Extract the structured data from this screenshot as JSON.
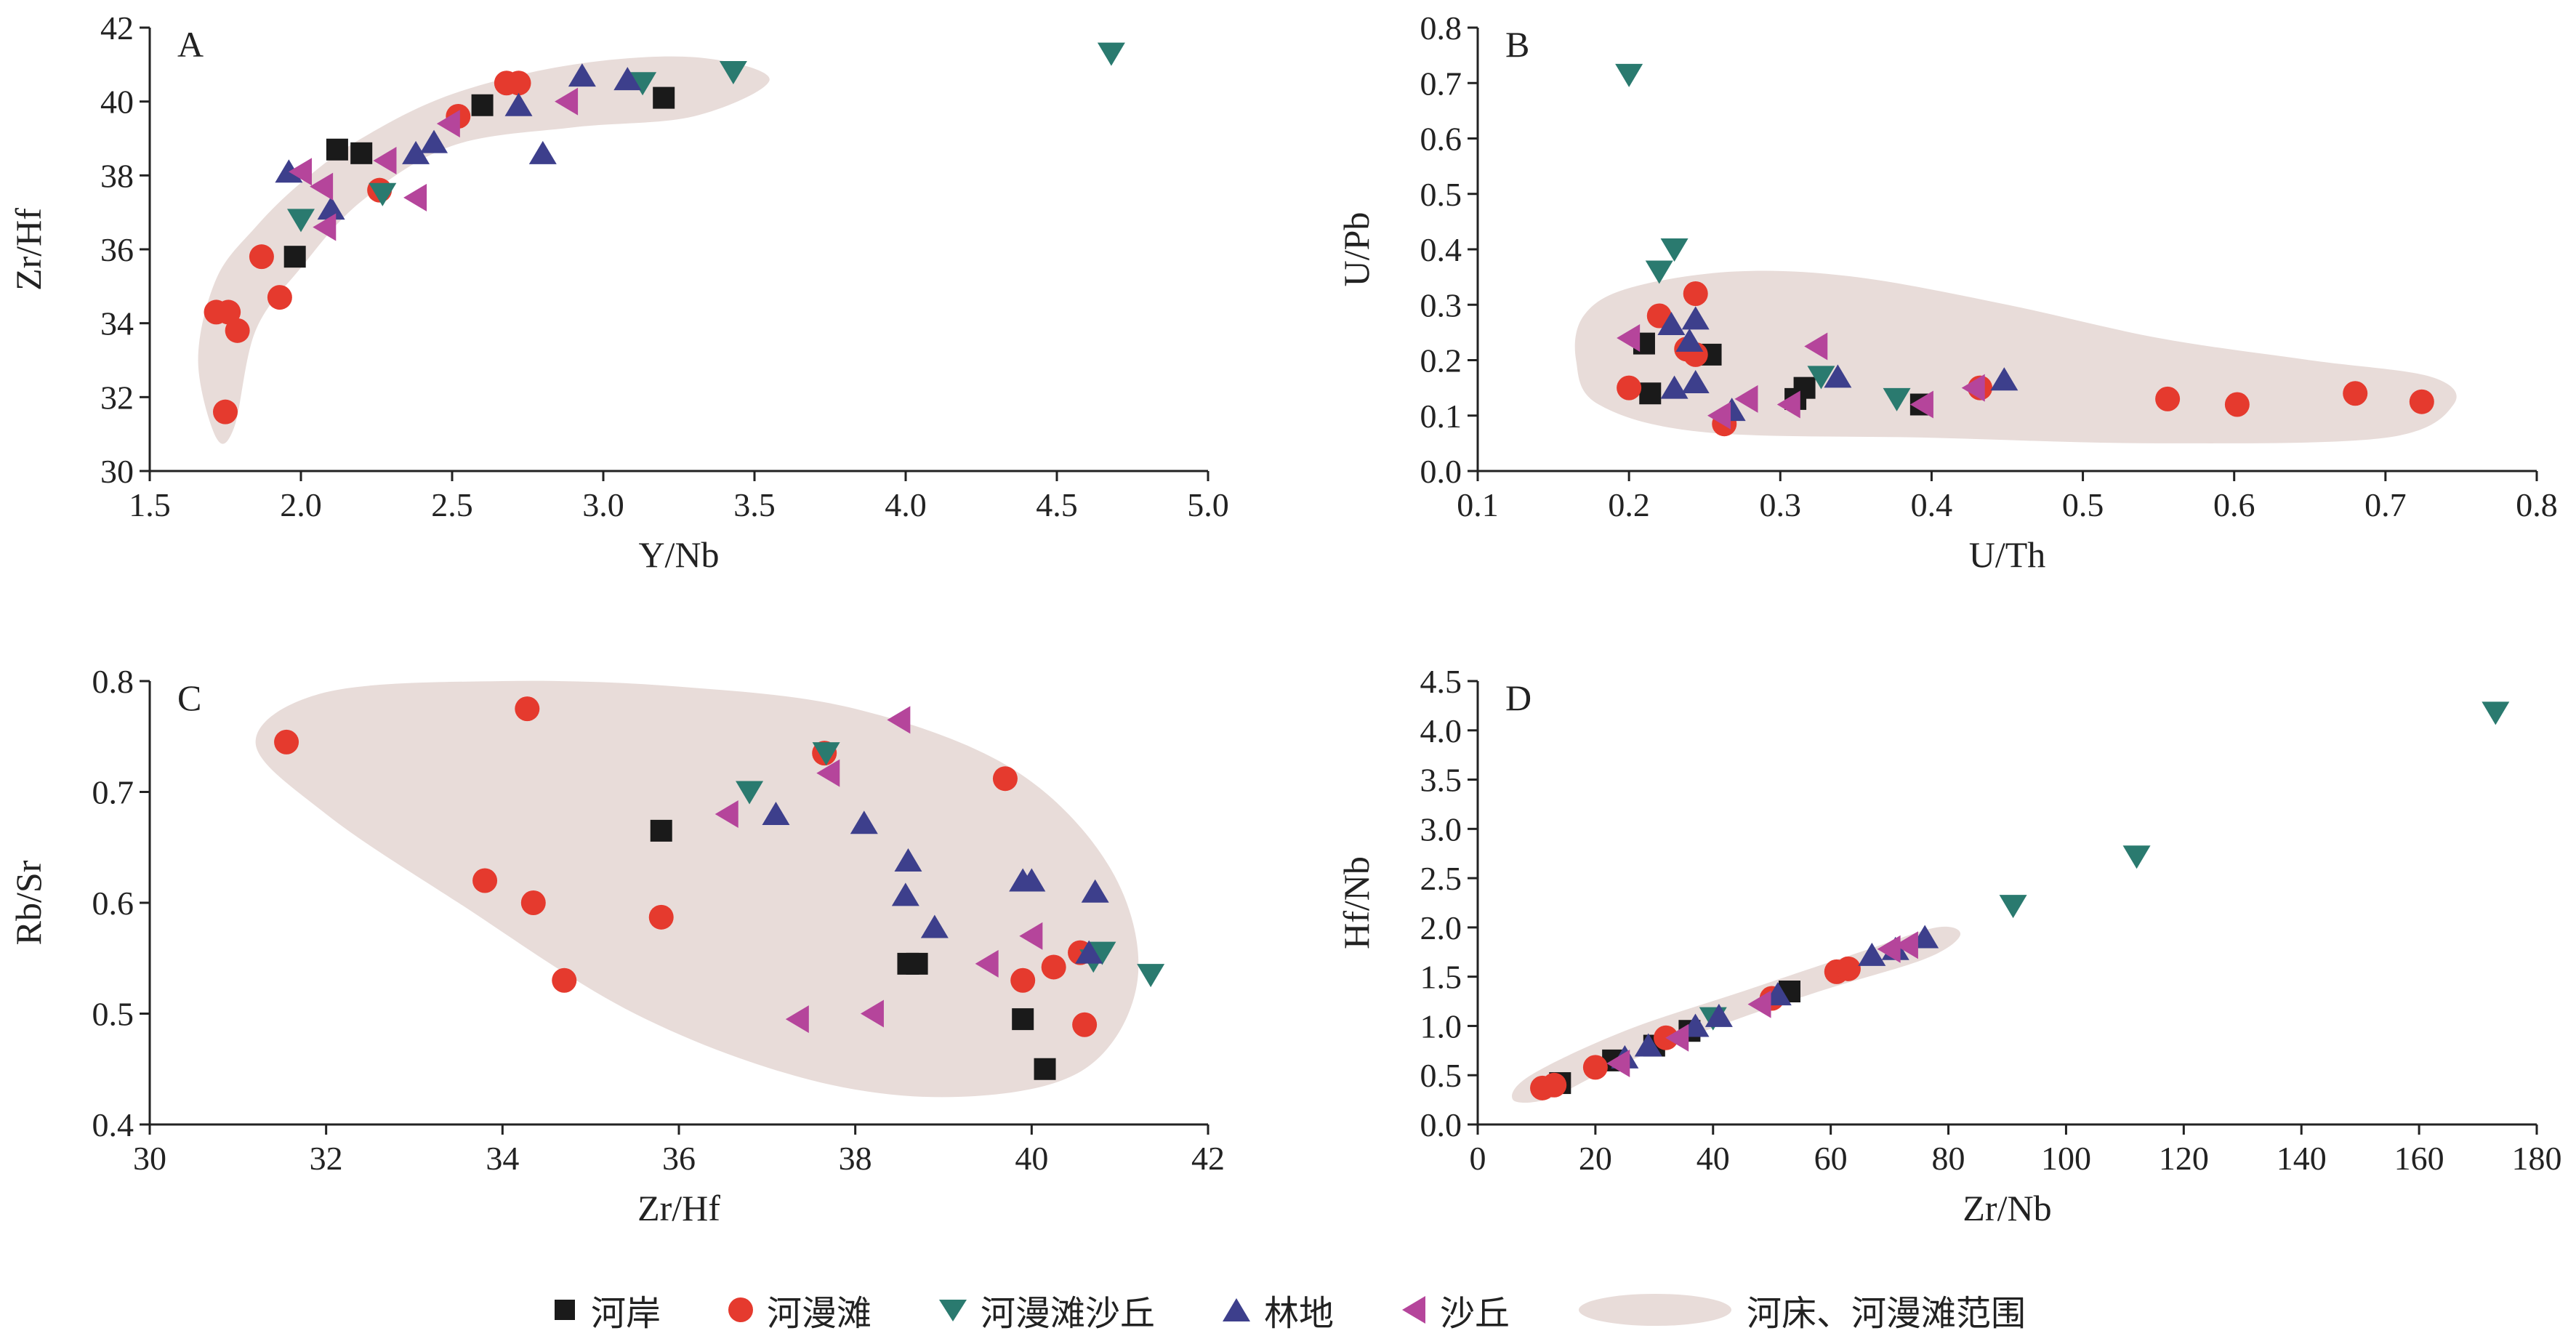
{
  "series_styles": [
    {
      "key": "riverbank",
      "name": "河岸",
      "shape": "square",
      "color": "#1a1a1a"
    },
    {
      "key": "floodplain",
      "name": "河漫滩",
      "shape": "circle",
      "color": "#e53a2e"
    },
    {
      "key": "floodplain_dune",
      "name": "河漫滩沙丘",
      "shape": "triangle-down",
      "color": "#2a7a6f"
    },
    {
      "key": "woodland",
      "name": "林地",
      "shape": "triangle-up",
      "color": "#3d3f8c"
    },
    {
      "key": "dune",
      "name": "沙丘",
      "shape": "triangle-left",
      "color": "#b5459b"
    }
  ],
  "region": {
    "name": "河床、河漫滩范围",
    "color": "#e8dcd9"
  },
  "chart_data": [
    {
      "panel": "A",
      "type": "scatter",
      "xlabel": "Y/Nb",
      "ylabel": "Zr/Hf",
      "xlim": [
        1.5,
        5.0
      ],
      "ylim": [
        30,
        42
      ],
      "xticks": [
        "1.5",
        "2.0",
        "2.5",
        "3.0",
        "3.5",
        "4.0",
        "4.5",
        "5.0"
      ],
      "yticks": [
        "30",
        "32",
        "34",
        "36",
        "38",
        "40",
        "42"
      ],
      "region_path": [
        [
          1.72,
          30.9
        ],
        [
          1.66,
          33
        ],
        [
          1.72,
          35.2
        ],
        [
          1.85,
          36.6
        ],
        [
          2.0,
          37.8
        ],
        [
          2.2,
          39.0
        ],
        [
          2.5,
          40.2
        ],
        [
          2.9,
          41.0
        ],
        [
          3.3,
          41.2
        ],
        [
          3.55,
          40.6
        ],
        [
          3.3,
          39.6
        ],
        [
          2.9,
          39.3
        ],
        [
          2.5,
          38.8
        ],
        [
          2.2,
          37.3
        ],
        [
          2.0,
          35.5
        ],
        [
          1.85,
          33.8
        ],
        [
          1.78,
          31.2
        ]
      ],
      "series": [
        {
          "key": "riverbank",
          "points": [
            [
              2.12,
              38.7
            ],
            [
              2.2,
              38.6
            ],
            [
              2.6,
              39.9
            ],
            [
              3.2,
              40.1
            ],
            [
              1.98,
              35.8
            ]
          ]
        },
        {
          "key": "floodplain",
          "points": [
            [
              1.72,
              34.3
            ],
            [
              1.76,
              34.3
            ],
            [
              1.79,
              33.8
            ],
            [
              1.75,
              31.6
            ],
            [
              1.87,
              35.8
            ],
            [
              1.93,
              34.7
            ],
            [
              2.26,
              37.6
            ],
            [
              2.52,
              39.6
            ],
            [
              2.68,
              40.5
            ],
            [
              2.72,
              40.5
            ]
          ]
        },
        {
          "key": "floodplain_dune",
          "points": [
            [
              2.0,
              36.8
            ],
            [
              2.27,
              37.5
            ],
            [
              3.13,
              40.5
            ],
            [
              3.43,
              40.8
            ],
            [
              4.68,
              41.3
            ]
          ]
        },
        {
          "key": "woodland",
          "points": [
            [
              1.96,
              38.1
            ],
            [
              2.1,
              37.1
            ],
            [
              2.38,
              38.6
            ],
            [
              2.44,
              38.9
            ],
            [
              2.72,
              39.9
            ],
            [
              2.8,
              38.6
            ],
            [
              2.93,
              40.7
            ],
            [
              3.08,
              40.6
            ]
          ]
        },
        {
          "key": "dune",
          "points": [
            [
              2.0,
              38.1
            ],
            [
              2.07,
              37.7
            ],
            [
              2.08,
              36.6
            ],
            [
              2.28,
              38.4
            ],
            [
              2.38,
              37.4
            ],
            [
              2.49,
              39.4
            ],
            [
              2.88,
              40.0
            ]
          ]
        }
      ]
    },
    {
      "panel": "B",
      "type": "scatter",
      "xlabel": "U/Th",
      "ylabel": "U/Pb",
      "xlim": [
        0.1,
        0.8
      ],
      "ylim": [
        0.0,
        0.8
      ],
      "xticks": [
        "0.1",
        "0.2",
        "0.3",
        "0.4",
        "0.5",
        "0.6",
        "0.7",
        "0.8"
      ],
      "yticks": [
        "0.0",
        "0.1",
        "0.2",
        "0.3",
        "0.4",
        "0.5",
        "0.6",
        "0.7",
        "0.8"
      ],
      "region_path": [
        [
          0.17,
          0.28
        ],
        [
          0.2,
          0.33
        ],
        [
          0.27,
          0.36
        ],
        [
          0.35,
          0.35
        ],
        [
          0.45,
          0.3
        ],
        [
          0.55,
          0.24
        ],
        [
          0.65,
          0.2
        ],
        [
          0.73,
          0.17
        ],
        [
          0.745,
          0.12
        ],
        [
          0.7,
          0.06
        ],
        [
          0.55,
          0.05
        ],
        [
          0.4,
          0.06
        ],
        [
          0.25,
          0.07
        ],
        [
          0.18,
          0.12
        ],
        [
          0.165,
          0.2
        ]
      ],
      "series": [
        {
          "key": "riverbank",
          "points": [
            [
              0.21,
              0.23
            ],
            [
              0.214,
              0.14
            ],
            [
              0.254,
              0.21
            ],
            [
              0.31,
              0.13
            ],
            [
              0.316,
              0.15
            ],
            [
              0.393,
              0.12
            ]
          ]
        },
        {
          "key": "floodplain",
          "points": [
            [
              0.2,
              0.15
            ],
            [
              0.22,
              0.28
            ],
            [
              0.238,
              0.22
            ],
            [
              0.244,
              0.21
            ],
            [
              0.244,
              0.32
            ],
            [
              0.263,
              0.085
            ],
            [
              0.432,
              0.15
            ],
            [
              0.556,
              0.13
            ],
            [
              0.602,
              0.12
            ],
            [
              0.68,
              0.14
            ],
            [
              0.724,
              0.125
            ]
          ]
        },
        {
          "key": "floodplain_dune",
          "points": [
            [
              0.2,
              0.715
            ],
            [
              0.22,
              0.36
            ],
            [
              0.23,
              0.4
            ],
            [
              0.327,
              0.17
            ],
            [
              0.377,
              0.13
            ]
          ]
        },
        {
          "key": "woodland",
          "points": [
            [
              0.228,
              0.265
            ],
            [
              0.23,
              0.15
            ],
            [
              0.24,
              0.235
            ],
            [
              0.244,
              0.275
            ],
            [
              0.244,
              0.16
            ],
            [
              0.268,
              0.11
            ],
            [
              0.338,
              0.17
            ],
            [
              0.448,
              0.165
            ]
          ]
        },
        {
          "key": "dune",
          "points": [
            [
              0.2,
              0.24
            ],
            [
              0.26,
              0.1
            ],
            [
              0.278,
              0.13
            ],
            [
              0.306,
              0.12
            ],
            [
              0.324,
              0.225
            ],
            [
              0.394,
              0.12
            ],
            [
              0.428,
              0.15
            ]
          ]
        }
      ]
    },
    {
      "panel": "C",
      "type": "scatter",
      "xlabel": "Zr/Hf",
      "ylabel": "Rb/Sr",
      "xlim": [
        30,
        42
      ],
      "ylim": [
        0.4,
        0.8
      ],
      "xticks": [
        "30",
        "32",
        "34",
        "36",
        "38",
        "40",
        "42"
      ],
      "yticks": [
        "0.4",
        "0.5",
        "0.6",
        "0.7",
        "0.8"
      ],
      "region_path": [
        [
          31.2,
          0.745
        ],
        [
          32,
          0.79
        ],
        [
          34,
          0.8
        ],
        [
          36,
          0.795
        ],
        [
          38,
          0.775
        ],
        [
          39.8,
          0.72
        ],
        [
          40.9,
          0.63
        ],
        [
          41.2,
          0.53
        ],
        [
          40.6,
          0.45
        ],
        [
          39.2,
          0.425
        ],
        [
          37.5,
          0.44
        ],
        [
          35.5,
          0.5
        ],
        [
          33.5,
          0.6
        ],
        [
          32,
          0.68
        ]
      ],
      "series": [
        {
          "key": "riverbank",
          "points": [
            [
              35.8,
              0.665
            ],
            [
              38.6,
              0.545
            ],
            [
              38.7,
              0.545
            ],
            [
              39.9,
              0.495
            ],
            [
              40.15,
              0.45
            ]
          ]
        },
        {
          "key": "floodplain",
          "points": [
            [
              31.55,
              0.745
            ],
            [
              33.8,
              0.62
            ],
            [
              34.28,
              0.775
            ],
            [
              34.35,
              0.6
            ],
            [
              34.7,
              0.53
            ],
            [
              35.8,
              0.587
            ],
            [
              37.65,
              0.735
            ],
            [
              39.7,
              0.712
            ],
            [
              39.9,
              0.53
            ],
            [
              40.25,
              0.542
            ],
            [
              40.55,
              0.555
            ],
            [
              40.6,
              0.49
            ]
          ]
        },
        {
          "key": "floodplain_dune",
          "points": [
            [
              36.8,
              0.7
            ],
            [
              37.67,
              0.735
            ],
            [
              40.8,
              0.555
            ],
            [
              40.7,
              0.548
            ],
            [
              41.35,
              0.535
            ]
          ]
        },
        {
          "key": "woodland",
          "points": [
            [
              37.1,
              0.68
            ],
            [
              38.1,
              0.672
            ],
            [
              38.6,
              0.638
            ],
            [
              38.57,
              0.607
            ],
            [
              38.9,
              0.578
            ],
            [
              39.9,
              0.62
            ],
            [
              40.0,
              0.62
            ],
            [
              40.72,
              0.61
            ],
            [
              40.65,
              0.555
            ]
          ]
        },
        {
          "key": "dune",
          "points": [
            [
              36.55,
              0.68
            ],
            [
              37.35,
              0.495
            ],
            [
              37.7,
              0.717
            ],
            [
              38.2,
              0.5
            ],
            [
              38.5,
              0.765
            ],
            [
              39.5,
              0.545
            ],
            [
              40.0,
              0.57
            ]
          ]
        }
      ]
    },
    {
      "panel": "D",
      "type": "scatter",
      "xlabel": "Zr/Nb",
      "ylabel": "Hf/Nb",
      "xlim": [
        0,
        180
      ],
      "ylim": [
        0.0,
        4.5
      ],
      "xticks": [
        "0",
        "20",
        "40",
        "60",
        "80",
        "100",
        "120",
        "140",
        "160",
        "180"
      ],
      "yticks": [
        "0.0",
        "0.5",
        "1.0",
        "1.5",
        "2.0",
        "2.5",
        "3.0",
        "3.5",
        "4.0",
        "4.5"
      ],
      "region_path": [
        [
          6,
          0.25
        ],
        [
          9,
          0.5
        ],
        [
          25,
          0.95
        ],
        [
          45,
          1.35
        ],
        [
          65,
          1.75
        ],
        [
          78,
          2.0
        ],
        [
          82,
          1.92
        ],
        [
          76,
          1.68
        ],
        [
          58,
          1.35
        ],
        [
          40,
          0.98
        ],
        [
          22,
          0.55
        ],
        [
          12,
          0.26
        ]
      ],
      "series": [
        {
          "key": "riverbank",
          "points": [
            [
              14,
              0.42
            ],
            [
              23,
              0.65
            ],
            [
              30,
              0.8
            ],
            [
              36,
              0.95
            ],
            [
              53,
              1.35
            ]
          ]
        },
        {
          "key": "floodplain",
          "points": [
            [
              11,
              0.37
            ],
            [
              13,
              0.4
            ],
            [
              20,
              0.58
            ],
            [
              32,
              0.88
            ],
            [
              50,
              1.28
            ],
            [
              61,
              1.55
            ],
            [
              63,
              1.58
            ]
          ]
        },
        {
          "key": "floodplain_dune",
          "points": [
            [
              40,
              1.08
            ],
            [
              91,
              2.22
            ],
            [
              112,
              2.72
            ],
            [
              173,
              4.18
            ]
          ]
        },
        {
          "key": "woodland",
          "points": [
            [
              25,
              0.68
            ],
            [
              29,
              0.8
            ],
            [
              37,
              1.0
            ],
            [
              41,
              1.1
            ],
            [
              51,
              1.32
            ],
            [
              67,
              1.72
            ],
            [
              71,
              1.78
            ],
            [
              76,
              1.9
            ]
          ]
        },
        {
          "key": "dune",
          "points": [
            [
              24,
              0.62
            ],
            [
              34,
              0.88
            ],
            [
              48,
              1.22
            ],
            [
              70,
              1.78
            ],
            [
              73,
              1.82
            ]
          ]
        }
      ]
    }
  ]
}
